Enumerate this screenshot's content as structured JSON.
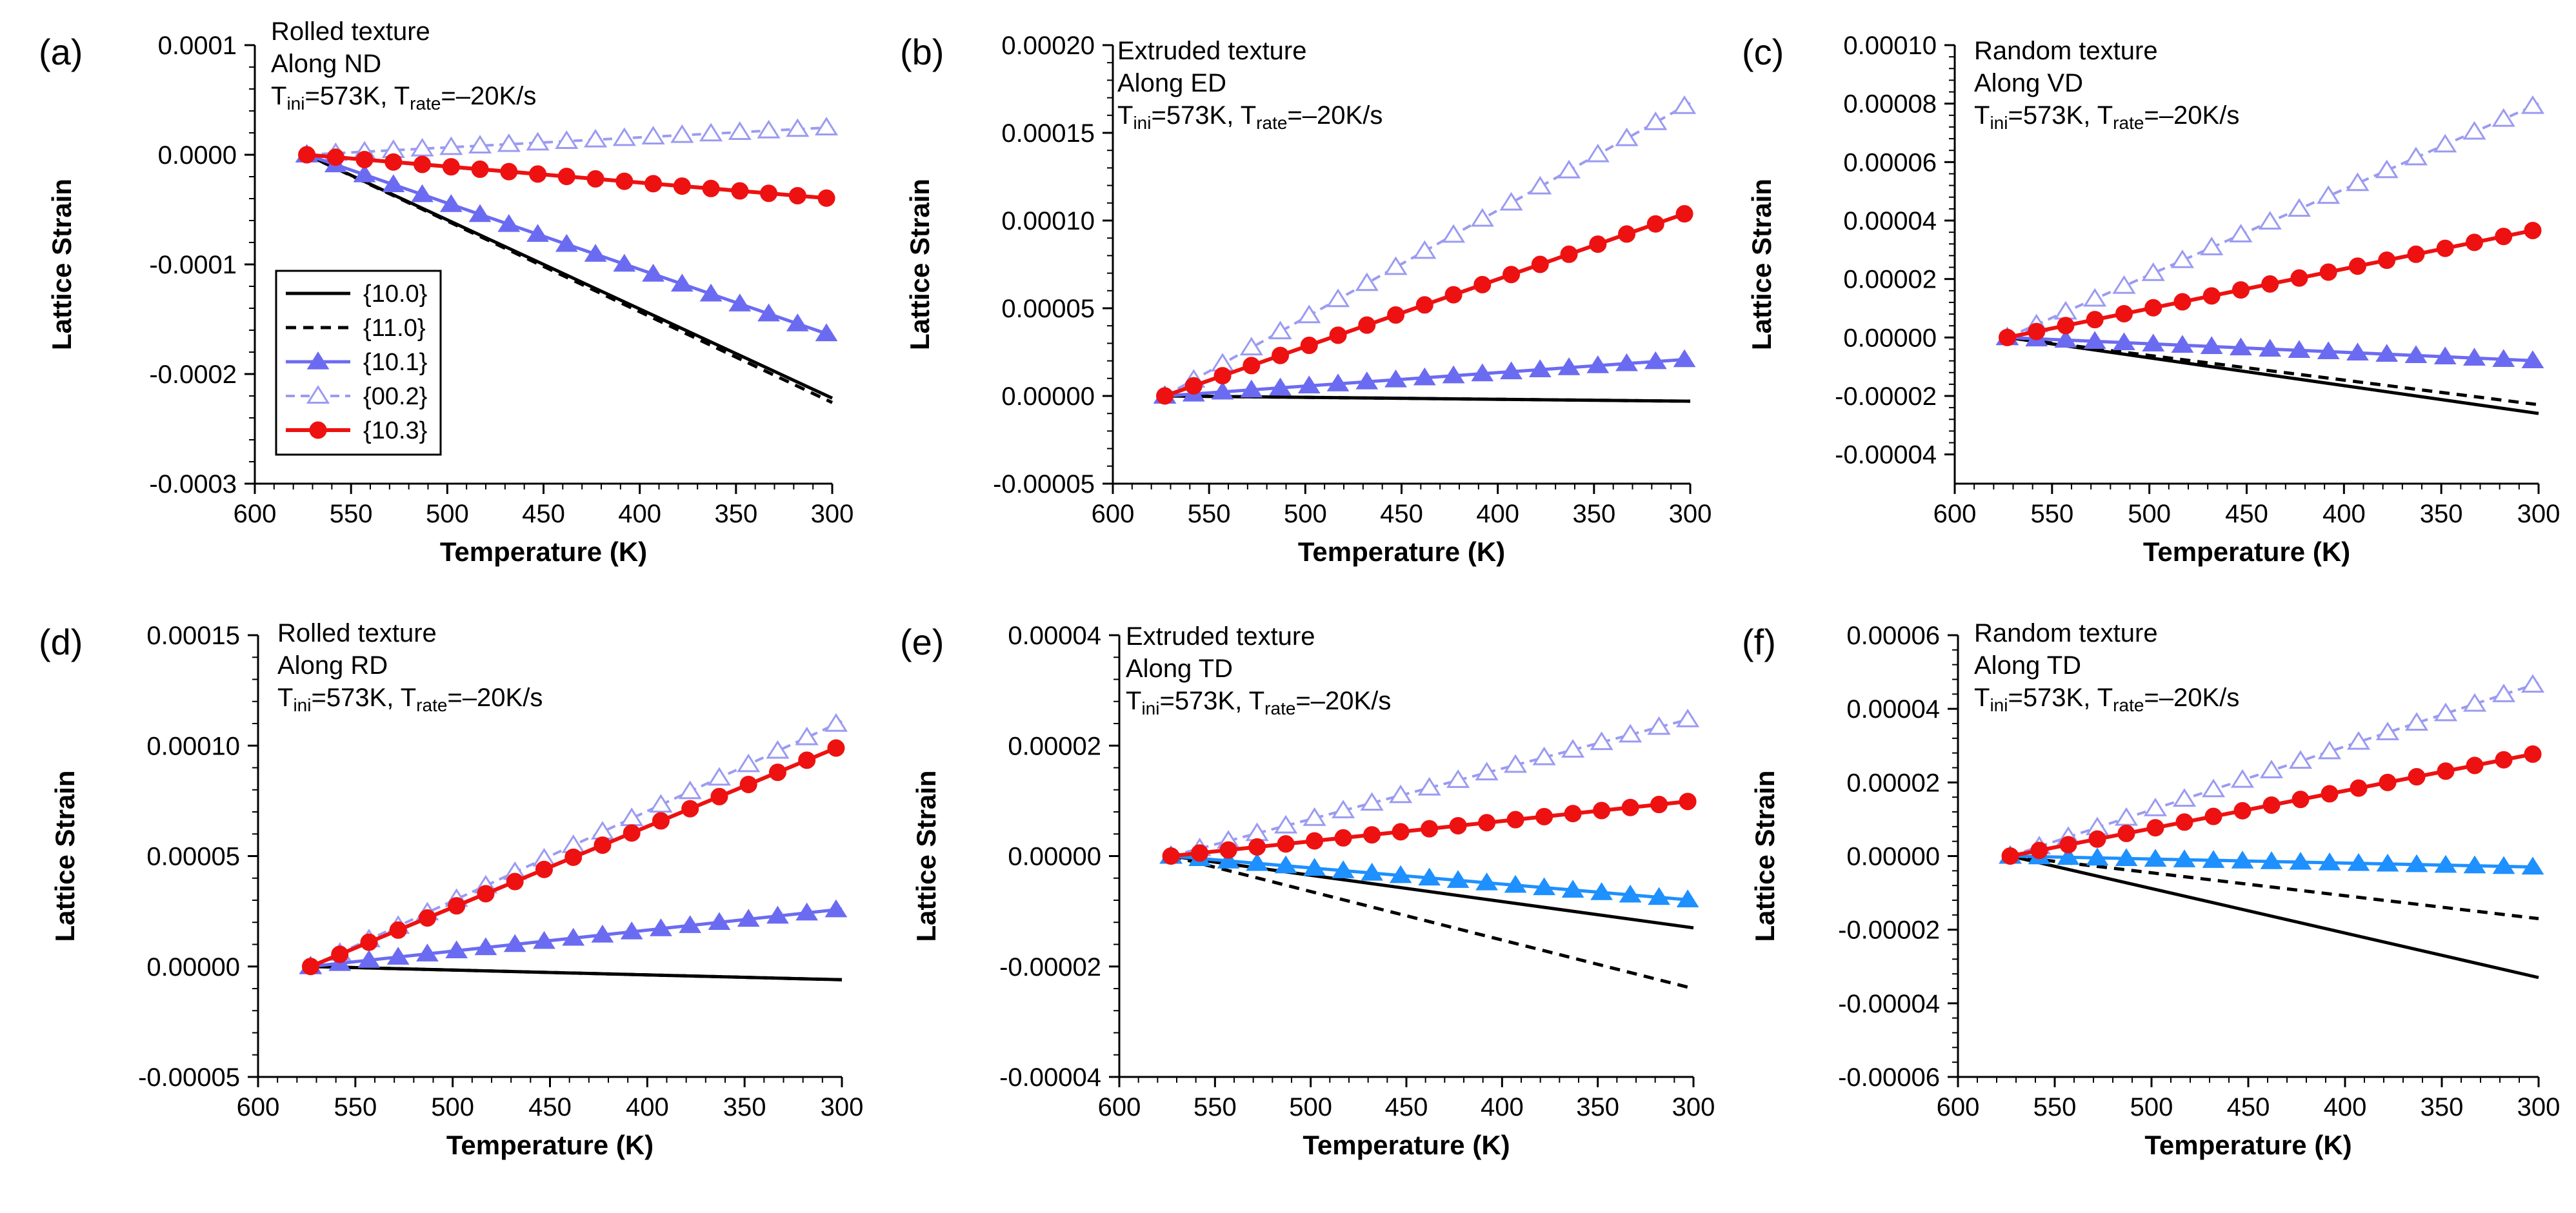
{
  "colors": {
    "black": "#000000",
    "blue_dark": "#6b6bf2",
    "blue_light": "#9b9bf2",
    "red": "#ee1111",
    "cyan_blue": "#1e90ff"
  },
  "legend": {
    "entries": [
      "{10.0}",
      "{11.0}",
      "{10.1}",
      "{00.2}",
      "{10.3}"
    ]
  },
  "chart_data": [
    {
      "type": "line",
      "panel": "(a)",
      "annotation": [
        "Rolled texture",
        "Along ND"
      ],
      "params": {
        "t_ini": "573K",
        "t_rate": "–20K/s"
      },
      "xlabel": "Temperature (K)",
      "ylabel": "Lattice Strain",
      "xlim": [
        600,
        300
      ],
      "ylim": [
        -0.0003,
        0.0001
      ],
      "xticks": [
        "600",
        "550",
        "500",
        "450",
        "400",
        "350",
        "300"
      ],
      "yticks": [
        "0.0001",
        "0.0000",
        "-0.0001",
        "-0.0002",
        "-0.0003"
      ],
      "legend": true,
      "series": [
        {
          "name": "{10.0}",
          "x": [
            573,
            300
          ],
          "y": [
            0,
            -0.000222
          ]
        },
        {
          "name": "{11.0}",
          "x": [
            573,
            300
          ],
          "y": [
            0,
            -0.000226
          ]
        },
        {
          "name": "{10.1}",
          "x": [
            573,
            300
          ],
          "y": [
            0,
            -0.000165
          ]
        },
        {
          "name": "{00.2}",
          "x": [
            573,
            300
          ],
          "y": [
            0,
            2.5e-05
          ]
        },
        {
          "name": "{10.3}",
          "x": [
            573,
            300
          ],
          "y": [
            0,
            -4e-05
          ]
        }
      ]
    },
    {
      "type": "line",
      "panel": "(b)",
      "annotation": [
        "Extruded texture",
        "Along ED"
      ],
      "params": {
        "t_ini": "573K",
        "t_rate": "–20K/s"
      },
      "xlabel": "Temperature (K)",
      "ylabel": "Lattice Strain",
      "xlim": [
        600,
        300
      ],
      "ylim": [
        -5e-05,
        0.0002
      ],
      "xticks": [
        "600",
        "550",
        "500",
        "450",
        "400",
        "350",
        "300"
      ],
      "yticks": [
        "0.00020",
        "0.00015",
        "0.00010",
        "0.00005",
        "0.00000",
        "-0.00005"
      ],
      "legend": false,
      "series": [
        {
          "name": "{10.0}",
          "x": [
            573,
            300
          ],
          "y": [
            0,
            -3e-06
          ]
        },
        {
          "name": "{11.0}",
          "x": [
            573,
            300
          ],
          "y": [
            0,
            -3e-06
          ]
        },
        {
          "name": "{10.1}",
          "x": [
            573,
            300
          ],
          "y": [
            0,
            2.1e-05
          ]
        },
        {
          "name": "{00.2}",
          "x": [
            573,
            300
          ],
          "y": [
            0,
            0.000167
          ]
        },
        {
          "name": "{10.3}",
          "x": [
            573,
            300
          ],
          "y": [
            0,
            0.000105
          ]
        }
      ]
    },
    {
      "type": "line",
      "panel": "(c)",
      "annotation": [
        "Random texture",
        "Along VD"
      ],
      "params": {
        "t_ini": "573K",
        "t_rate": "–20K/s"
      },
      "xlabel": "Temperature (K)",
      "ylabel": "Lattice Strain",
      "xlim": [
        600,
        300
      ],
      "ylim": [
        -5e-05,
        0.0001
      ],
      "xticks": [
        "600",
        "550",
        "500",
        "450",
        "400",
        "350",
        "300"
      ],
      "yticks": [
        "0.00010",
        "0.00008",
        "0.00006",
        "0.00004",
        "0.00002",
        "0.00000",
        "-0.00002",
        "-0.00004"
      ],
      "legend": false,
      "series": [
        {
          "name": "{10.0}",
          "x": [
            573,
            300
          ],
          "y": [
            0,
            -2.6e-05
          ]
        },
        {
          "name": "{11.0}",
          "x": [
            573,
            300
          ],
          "y": [
            0,
            -2.3e-05
          ]
        },
        {
          "name": "{10.1}",
          "x": [
            573,
            300
          ],
          "y": [
            0,
            -8e-06
          ]
        },
        {
          "name": "{00.2}",
          "x": [
            573,
            300
          ],
          "y": [
            0,
            8e-05
          ]
        },
        {
          "name": "{10.3}",
          "x": [
            573,
            300
          ],
          "y": [
            0,
            3.7e-05
          ]
        }
      ]
    },
    {
      "type": "line",
      "panel": "(d)",
      "annotation": [
        "Rolled texture",
        "Along RD"
      ],
      "params": {
        "t_ini": "573K",
        "t_rate": "–20K/s"
      },
      "xlabel": "Temperature (K)",
      "ylabel": "Lattice Strain",
      "xlim": [
        600,
        300
      ],
      "ylim": [
        -5e-05,
        0.00015
      ],
      "xticks": [
        "600",
        "550",
        "500",
        "450",
        "400",
        "350",
        "300"
      ],
      "yticks": [
        "0.00015",
        "0.00010",
        "0.00005",
        "0.00000",
        "-0.00005"
      ],
      "legend": false,
      "series": [
        {
          "name": "{10.0}",
          "x": [
            573,
            300
          ],
          "y": [
            0,
            -6e-06
          ]
        },
        {
          "name": "{11.0}",
          "x": [
            573,
            300
          ],
          "y": [
            0,
            -6e-06
          ]
        },
        {
          "name": "{10.1}",
          "x": [
            573,
            300
          ],
          "y": [
            0,
            2.6e-05
          ]
        },
        {
          "name": "{00.2}",
          "x": [
            573,
            300
          ],
          "y": [
            0,
            0.000111
          ]
        },
        {
          "name": "{10.3}",
          "x": [
            573,
            300
          ],
          "y": [
            0,
            0.0001
          ]
        }
      ]
    },
    {
      "type": "line",
      "panel": "(e)",
      "annotation": [
        "Extruded texture",
        "Along TD"
      ],
      "params": {
        "t_ini": "573K",
        "t_rate": "–20K/s"
      },
      "xlabel": "Temperature (K)",
      "ylabel": "Lattice Strain",
      "xlim": [
        600,
        300
      ],
      "ylim": [
        -4e-05,
        4e-05
      ],
      "xticks": [
        "600",
        "550",
        "500",
        "450",
        "400",
        "350",
        "300"
      ],
      "yticks": [
        "0.00004",
        "0.00002",
        "0.00000",
        "-0.00002",
        "-0.00004"
      ],
      "legend": false,
      "series": [
        {
          "name": "{10.0}",
          "x": [
            573,
            300
          ],
          "y": [
            0,
            -1.3e-05
          ]
        },
        {
          "name": "{11.0}",
          "x": [
            573,
            300
          ],
          "y": [
            0,
            -2.4e-05
          ]
        },
        {
          "name": "{10.1}",
          "x": [
            573,
            300
          ],
          "y": [
            0,
            -8e-06
          ]
        },
        {
          "name": "{00.2}",
          "x": [
            573,
            300
          ],
          "y": [
            0,
            2.5e-05
          ]
        },
        {
          "name": "{10.3}",
          "x": [
            573,
            300
          ],
          "y": [
            0,
            1e-05
          ]
        }
      ]
    },
    {
      "type": "line",
      "panel": "(f)",
      "annotation": [
        "Random texture",
        "Along TD"
      ],
      "params": {
        "t_ini": "573K",
        "t_rate": "–20K/s"
      },
      "xlabel": "Temperature (K)",
      "ylabel": "Lattice Strain",
      "xlim": [
        600,
        300
      ],
      "ylim": [
        -6e-05,
        6e-05
      ],
      "xticks": [
        "600",
        "550",
        "500",
        "450",
        "400",
        "350",
        "300"
      ],
      "yticks": [
        "0.00006",
        "0.00004",
        "0.00002",
        "0.00000",
        "-0.00002",
        "-0.00004",
        "-0.00006"
      ],
      "legend": false,
      "series": [
        {
          "name": "{10.0}",
          "x": [
            573,
            300
          ],
          "y": [
            0,
            -3.3e-05
          ]
        },
        {
          "name": "{11.0}",
          "x": [
            573,
            300
          ],
          "y": [
            0,
            -1.7e-05
          ]
        },
        {
          "name": "{10.1}",
          "x": [
            573,
            300
          ],
          "y": [
            0,
            -3e-06
          ]
        },
        {
          "name": "{00.2}",
          "x": [
            573,
            300
          ],
          "y": [
            0,
            4.7e-05
          ]
        },
        {
          "name": "{10.3}",
          "x": [
            573,
            300
          ],
          "y": [
            0,
            2.8e-05
          ]
        }
      ]
    }
  ]
}
